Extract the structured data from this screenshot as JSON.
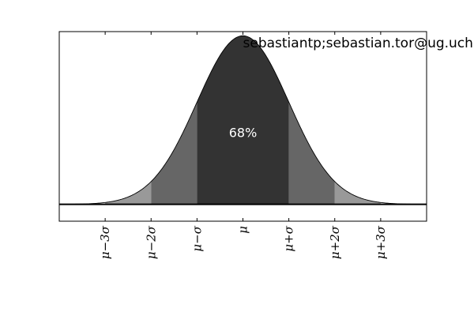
{
  "chart_data": {
    "type": "area",
    "title": "",
    "xlabel": "",
    "ylabel": "",
    "xlim": [
      -4,
      4
    ],
    "ylim": [
      -0.08,
      0.82
    ],
    "distribution": "normal",
    "curve": {
      "mean": 0,
      "std": 1,
      "peak": 0.8
    },
    "bands": [
      {
        "from": -3,
        "to": -2,
        "color": "#999999"
      },
      {
        "from": 2,
        "to": 3,
        "color": "#999999"
      },
      {
        "from": -2,
        "to": -1,
        "color": "#666666"
      },
      {
        "from": 1,
        "to": 2,
        "color": "#666666"
      },
      {
        "from": -1,
        "to": 1,
        "color": "#333333"
      }
    ],
    "xticks": [
      {
        "value": -3,
        "label": "μ−3σ"
      },
      {
        "value": -2,
        "label": "μ−2σ"
      },
      {
        "value": -1,
        "label": "μ−σ"
      },
      {
        "value": 0,
        "label": "μ"
      },
      {
        "value": 1,
        "label": "μ+σ"
      },
      {
        "value": 2,
        "label": "μ+2σ"
      },
      {
        "value": 3,
        "label": "μ+3σ"
      }
    ],
    "annotations": [
      {
        "text": "68%",
        "x": 0,
        "y": 0.32,
        "color": "#ffffff"
      },
      {
        "text": "sebastiantp;sebastian.tor@ug.uchile.cl",
        "x": 0,
        "y": 0.82,
        "color": "#000000"
      }
    ],
    "grid": false,
    "legend": "none"
  }
}
